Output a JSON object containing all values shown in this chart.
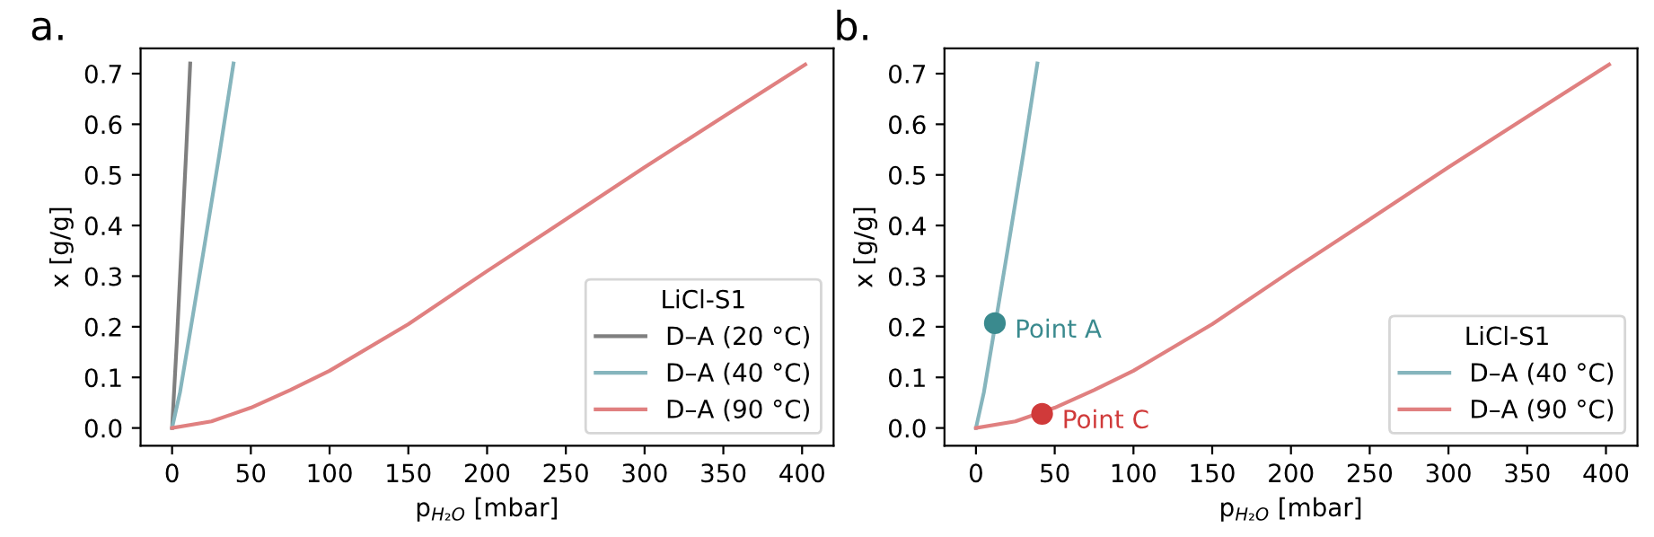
{
  "chart_data": [
    {
      "type": "line",
      "title": "a.",
      "xlabel": "p$_{H₂O}$ [mbar]",
      "ylabel": "x [g/g]",
      "legend_title": "LiCl-S1",
      "legend": "bottom right",
      "grid": false,
      "xlim": [
        -20,
        420
      ],
      "ylim": [
        -0.035,
        0.75
      ],
      "xticks": [
        0,
        50,
        100,
        150,
        200,
        250,
        300,
        350,
        400
      ],
      "yticks": [
        {
          "value": 0,
          "label": "0.0"
        },
        0.1,
        0.2,
        0.3,
        0.4,
        0.5,
        0.6,
        0.7
      ],
      "series": [
        {
          "name": "D–A (20 °C)",
          "color": "#7f7f7f",
          "x": [
            0,
            3,
            6,
            9,
            11.5
          ],
          "values": [
            0,
            0.17,
            0.36,
            0.55,
            0.72
          ]
        },
        {
          "name": "D–A (40 °C)",
          "color": "#86b5bd",
          "x": [
            0,
            5,
            12,
            20,
            30,
            39
          ],
          "values": [
            0,
            0.07,
            0.2,
            0.35,
            0.54,
            0.72
          ]
        },
        {
          "name": "D–A (90 °C)",
          "color": "#e08080",
          "x": [
            0,
            25,
            50,
            75,
            100,
            150,
            200,
            250,
            300,
            350,
            402
          ],
          "values": [
            0,
            0.013,
            0.04,
            0.075,
            0.113,
            0.205,
            0.31,
            0.412,
            0.515,
            0.615,
            0.718
          ]
        }
      ]
    },
    {
      "type": "line",
      "title": "b.",
      "xlabel": "p$_{H₂O}$ [mbar]",
      "ylabel": "x [g/g]",
      "legend_title": "LiCl-S1",
      "legend": "bottom right",
      "grid": false,
      "xlim": [
        -20,
        420
      ],
      "ylim": [
        -0.035,
        0.75
      ],
      "xticks": [
        0,
        50,
        100,
        150,
        200,
        250,
        300,
        350,
        400
      ],
      "yticks": [
        {
          "value": 0,
          "label": "0.0"
        },
        0.1,
        0.2,
        0.3,
        0.4,
        0.5,
        0.6,
        0.7
      ],
      "series": [
        {
          "name": "D–A (40 °C)",
          "color": "#86b5bd",
          "x": [
            0,
            5,
            12,
            20,
            30,
            39
          ],
          "values": [
            0,
            0.07,
            0.2,
            0.35,
            0.54,
            0.72
          ]
        },
        {
          "name": "D–A (90 °C)",
          "color": "#e08080",
          "x": [
            0,
            25,
            50,
            75,
            100,
            150,
            200,
            250,
            300,
            350,
            402
          ],
          "values": [
            0,
            0.013,
            0.04,
            0.075,
            0.113,
            0.205,
            0.31,
            0.412,
            0.515,
            0.615,
            0.718
          ]
        },
        {
          "name": "Point A",
          "type": "scatter",
          "marker": "circle",
          "color": "#3a8a8e",
          "x": [
            12
          ],
          "values": [
            0.207
          ]
        },
        {
          "name": "Point C",
          "type": "scatter",
          "marker": "circle",
          "color": "#d03a3a",
          "x": [
            42
          ],
          "values": [
            0.028
          ]
        }
      ]
    }
  ]
}
